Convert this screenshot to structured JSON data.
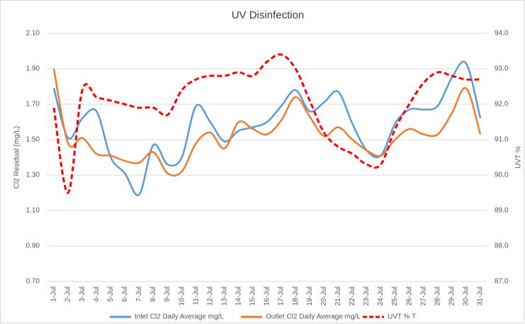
{
  "chart_data": {
    "type": "line",
    "title": "UV Disinfection",
    "y_label": "Cl2 Residual (mg/L)",
    "y2_label": "UVT %",
    "categories": [
      "1-Jul",
      "2-Jul",
      "3-Jul",
      "4-Jul",
      "5-Jul",
      "6-Jul",
      "7-Jul",
      "8-Jul",
      "9-Jul",
      "10-Jul",
      "11-Jul",
      "12-Jul",
      "13-Jul",
      "14-Jul",
      "15-Jul",
      "16-Jul",
      "17-Jul",
      "18-Jul",
      "19-Jul",
      "20-Jul",
      "21-Jul",
      "22-Jul",
      "23-Jul",
      "24-Jul",
      "25-Jul",
      "26-Jul",
      "27-Jul",
      "28-Jul",
      "29-Jul",
      "30-Jul",
      "31-Jul"
    ],
    "ylim": [
      0.7,
      2.1
    ],
    "yticks": [
      {
        "value": 0.7,
        "label": "0.70"
      },
      {
        "value": 0.9,
        "label": "0.90"
      },
      {
        "value": 1.1,
        "label": "1.10"
      },
      {
        "value": 1.3,
        "label": "1.30"
      },
      {
        "value": 1.5,
        "label": "1.50"
      },
      {
        "value": 1.7,
        "label": "1.70"
      },
      {
        "value": 1.9,
        "label": "1.90"
      },
      {
        "value": 2.1,
        "label": "2.10"
      }
    ],
    "y2lim": [
      87,
      94
    ],
    "y2ticks": [
      {
        "value": 87,
        "label": "87.0"
      },
      {
        "value": 88,
        "label": "88.0"
      },
      {
        "value": 89,
        "label": "89.0"
      },
      {
        "value": 90,
        "label": "90.0"
      },
      {
        "value": 91,
        "label": "91.0"
      },
      {
        "value": 92,
        "label": "92.0"
      },
      {
        "value": 93,
        "label": "93.0"
      },
      {
        "value": 94,
        "label": "94.0"
      }
    ],
    "grid": true,
    "series": [
      {
        "name": "Inlet Cl2 Daily Average mg/L",
        "color": "#5b9bd5",
        "dashed": false,
        "values": [
          1.79,
          1.51,
          1.62,
          1.66,
          1.4,
          1.31,
          1.19,
          1.47,
          1.36,
          1.4,
          1.69,
          1.6,
          1.49,
          1.55,
          1.57,
          1.6,
          1.69,
          1.78,
          1.66,
          1.71,
          1.77,
          1.59,
          1.44,
          1.41,
          1.59,
          1.67,
          1.67,
          1.69,
          1.85,
          1.93,
          1.62
        ]
      },
      {
        "name": "Outlet Cl2 Daily Average mg/L",
        "color": "#ed7d31",
        "dashed": false,
        "values": [
          1.9,
          1.48,
          1.51,
          1.42,
          1.41,
          1.38,
          1.37,
          1.43,
          1.31,
          1.32,
          1.48,
          1.54,
          1.45,
          1.6,
          1.56,
          1.53,
          1.61,
          1.74,
          1.63,
          1.52,
          1.57,
          1.5,
          1.44,
          1.41,
          1.5,
          1.56,
          1.53,
          1.53,
          1.65,
          1.79,
          1.53
        ]
      },
      {
        "name": "UVT % T",
        "color": "#ff0000",
        "dashed": true,
        "axis": "y2",
        "values": [
          91.9,
          89.5,
          92.4,
          92.2,
          92.1,
          92.0,
          91.9,
          91.9,
          91.7,
          92.4,
          92.7,
          92.8,
          92.8,
          92.9,
          92.8,
          93.2,
          93.4,
          93.0,
          92.1,
          91.2,
          90.8,
          90.6,
          90.3,
          90.3,
          91.3,
          92.0,
          92.6,
          92.9,
          92.8,
          92.7,
          92.7
        ]
      }
    ]
  }
}
